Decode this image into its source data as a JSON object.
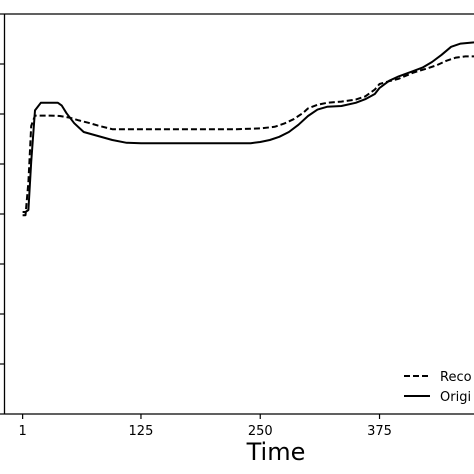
{
  "chart_data": {
    "type": "line",
    "xlabel": "Time",
    "ylabel": "",
    "title": "",
    "xlim": [
      -18,
      474
    ],
    "ylim": [
      0,
      1
    ],
    "xticks": [
      1,
      125,
      250,
      375
    ],
    "xtick_labels": [
      "1",
      "125",
      "250",
      "375"
    ],
    "legend_position": "bottom-right",
    "series": [
      {
        "name": "Reco",
        "style": "dashed",
        "x": [
          1,
          4,
          7,
          10,
          14,
          20,
          30,
          40,
          50,
          60,
          70,
          80,
          95,
          110,
          125,
          150,
          175,
          200,
          225,
          250,
          265,
          275,
          285,
          295,
          300,
          310,
          320,
          335,
          350,
          360,
          370,
          375,
          385,
          395,
          410,
          425,
          435,
          445,
          455,
          465,
          474
        ],
        "y": [
          0.497,
          0.497,
          0.58,
          0.72,
          0.746,
          0.746,
          0.746,
          0.745,
          0.741,
          0.734,
          0.728,
          0.721,
          0.712,
          0.712,
          0.712,
          0.712,
          0.712,
          0.712,
          0.712,
          0.714,
          0.718,
          0.726,
          0.737,
          0.753,
          0.764,
          0.773,
          0.778,
          0.781,
          0.786,
          0.794,
          0.811,
          0.825,
          0.832,
          0.838,
          0.853,
          0.864,
          0.872,
          0.883,
          0.891,
          0.894,
          0.894
        ]
      },
      {
        "name": "Origi",
        "style": "solid",
        "x": [
          1,
          4,
          7,
          10,
          14,
          20,
          30,
          38,
          42,
          47,
          55,
          65,
          80,
          95,
          110,
          125,
          150,
          175,
          200,
          225,
          240,
          250,
          260,
          270,
          280,
          290,
          300,
          310,
          320,
          335,
          350,
          360,
          370,
          375,
          385,
          395,
          410,
          420,
          430,
          440,
          450,
          460,
          474
        ],
        "y": [
          0.505,
          0.505,
          0.51,
          0.63,
          0.759,
          0.778,
          0.778,
          0.778,
          0.771,
          0.752,
          0.727,
          0.705,
          0.695,
          0.685,
          0.678,
          0.677,
          0.677,
          0.677,
          0.677,
          0.677,
          0.677,
          0.68,
          0.685,
          0.693,
          0.705,
          0.723,
          0.745,
          0.761,
          0.768,
          0.77,
          0.778,
          0.787,
          0.8,
          0.815,
          0.833,
          0.844,
          0.857,
          0.866,
          0.88,
          0.898,
          0.918,
          0.926,
          0.929
        ]
      }
    ]
  }
}
